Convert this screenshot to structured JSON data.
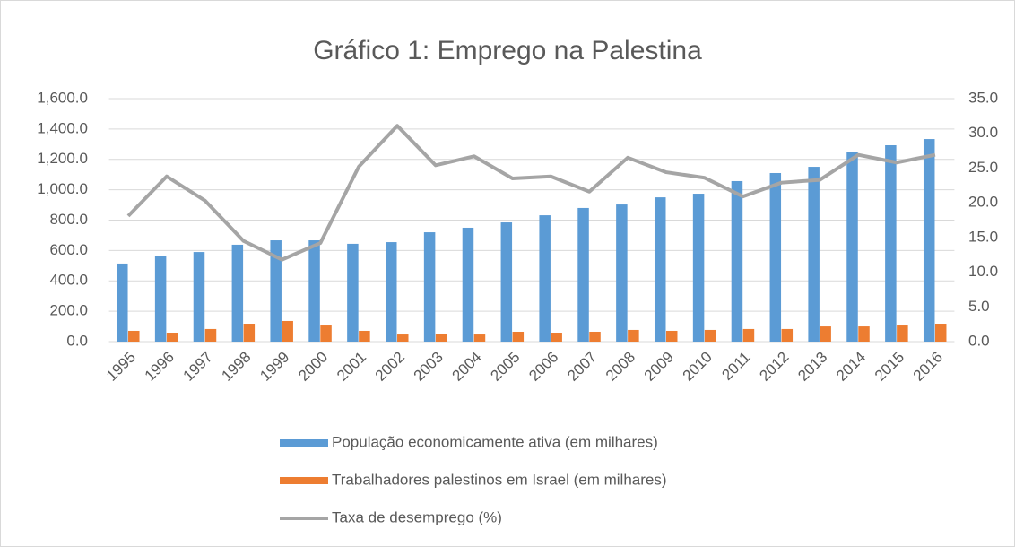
{
  "chart_data": {
    "type": "bar",
    "title": "Gráfico 1: Emprego na Palestina",
    "categories": [
      "1995",
      "1996",
      "1997",
      "1998",
      "1999",
      "2000",
      "2001",
      "2002",
      "2003",
      "2004",
      "2005",
      "2006",
      "2007",
      "2008",
      "2009",
      "2010",
      "2011",
      "2012",
      "2013",
      "2014",
      "2015",
      "2016"
    ],
    "series": [
      {
        "name": "População economicamente ativa (em milhares)",
        "color": "#5b9bd5",
        "type": "bar",
        "values": [
          514,
          561,
          590,
          638,
          667,
          667,
          644,
          655,
          720,
          750,
          785,
          832,
          880,
          903,
          950,
          974,
          1057,
          1110,
          1151,
          1246,
          1293,
          1334
        ]
      },
      {
        "name": "Trabalhadores palestinos em Israel (em milhares)",
        "color": "#ed7d31",
        "type": "bar",
        "values": [
          71,
          59,
          83,
          118,
          136,
          112,
          71,
          47,
          53,
          47,
          65,
          59,
          65,
          77,
          71,
          77,
          83,
          83,
          100,
          100,
          112,
          118
        ]
      },
      {
        "name": "Taxa de desemprego (%)",
        "color": "#a5a5a5",
        "type": "line",
        "axis": "y2",
        "values": [
          18.1,
          23.8,
          20.3,
          14.5,
          11.8,
          14.2,
          25.2,
          31.1,
          25.4,
          26.7,
          23.5,
          23.8,
          21.6,
          26.5,
          24.4,
          23.6,
          20.9,
          22.9,
          23.3,
          26.9,
          25.8,
          26.9
        ]
      }
    ],
    "ylim": [
      0,
      1600
    ],
    "yticks": [
      {
        "value": 0,
        "label": "0.0"
      },
      {
        "value": 200,
        "label": "200.0"
      },
      {
        "value": 400,
        "label": "400.0"
      },
      {
        "value": 600,
        "label": "600.0"
      },
      {
        "value": 800,
        "label": "800.0"
      },
      {
        "value": 1000,
        "label": "1,000.0"
      },
      {
        "value": 1200,
        "label": "1,200.0"
      },
      {
        "value": 1400,
        "label": "1,400.0"
      },
      {
        "value": 1600,
        "label": "1,600.0"
      }
    ],
    "y2lim": [
      0,
      35
    ],
    "y2ticks": [
      {
        "value": 0,
        "label": "0.0"
      },
      {
        "value": 5,
        "label": "5.0"
      },
      {
        "value": 10,
        "label": "10.0"
      },
      {
        "value": 15,
        "label": "15.0"
      },
      {
        "value": 20,
        "label": "20.0"
      },
      {
        "value": 25,
        "label": "25.0"
      },
      {
        "value": 30,
        "label": "30.0"
      },
      {
        "value": 35,
        "label": "35.0"
      }
    ],
    "grid": true,
    "legend": "bottom"
  }
}
